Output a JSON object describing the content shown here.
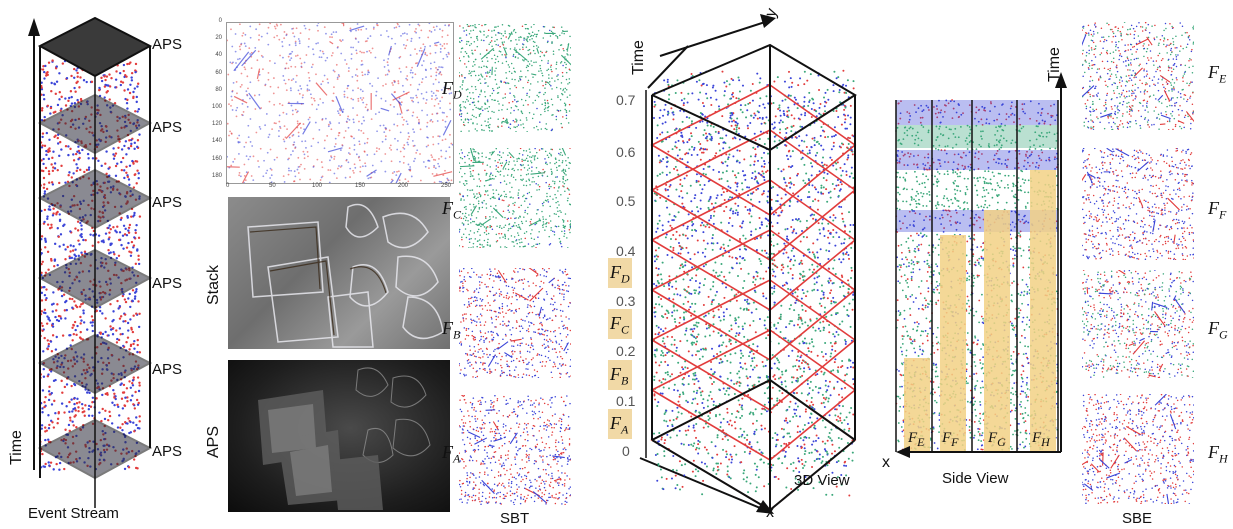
{
  "event_stream": {
    "aps_labels": [
      "APS",
      "APS",
      "APS",
      "APS",
      "APS",
      "APS"
    ],
    "time_label": "Time",
    "caption": "Event Stream"
  },
  "middle": {
    "stack_label": "Stack",
    "aps_label": "APS",
    "plot_y_ticks": [
      "0",
      "20",
      "40",
      "60",
      "80",
      "100",
      "120",
      "140",
      "160",
      "180"
    ],
    "plot_x_ticks": [
      "0",
      "50",
      "100",
      "150",
      "200",
      "250"
    ]
  },
  "sbt": {
    "caption": "SBT",
    "frames": [
      {
        "letter": "F",
        "sub": "D"
      },
      {
        "letter": "F",
        "sub": "C"
      },
      {
        "letter": "F",
        "sub": "B"
      },
      {
        "letter": "F",
        "sub": "A"
      }
    ]
  },
  "view3d": {
    "time_label": "Time",
    "axis_y": "y",
    "axis_x": "x",
    "caption": "3D View",
    "ticks": [
      "0.7",
      "0.6",
      "0.5",
      "0.4",
      "0.3",
      "0.2",
      "0.1",
      "0"
    ],
    "bands": [
      {
        "letter": "F",
        "sub": "D"
      },
      {
        "letter": "F",
        "sub": "C"
      },
      {
        "letter": "F",
        "sub": "B"
      },
      {
        "letter": "F",
        "sub": "A"
      }
    ]
  },
  "side_view": {
    "time_label": "Time",
    "axis_x": "x",
    "caption": "Side View",
    "bars": [
      {
        "letter": "F",
        "sub": "E"
      },
      {
        "letter": "F",
        "sub": "F"
      },
      {
        "letter": "F",
        "sub": "G"
      },
      {
        "letter": "F",
        "sub": "H"
      }
    ]
  },
  "sbe": {
    "caption": "SBE",
    "frames": [
      {
        "letter": "F",
        "sub": "E"
      },
      {
        "letter": "F",
        "sub": "F"
      },
      {
        "letter": "F",
        "sub": "G"
      },
      {
        "letter": "F",
        "sub": "H"
      }
    ]
  },
  "colors": {
    "red": "#e23c3c",
    "blue": "#3a44d8",
    "green": "#3aa77a",
    "band": "#f1d9a6",
    "bar": "#f2d185"
  }
}
